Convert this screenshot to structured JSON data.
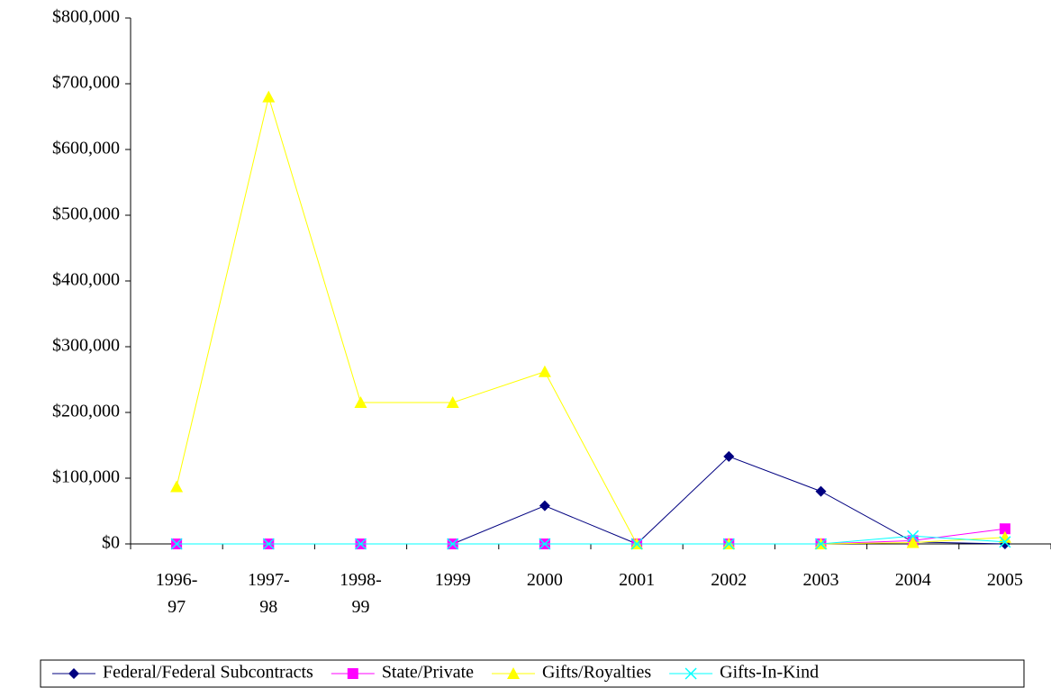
{
  "chart_data": {
    "type": "line",
    "categories": [
      "1996-97",
      "1997-98",
      "1998-99",
      "1999",
      "2000",
      "2001",
      "2002",
      "2003",
      "2004",
      "2005"
    ],
    "series": [
      {
        "name": "Federal/Federal Subcontracts",
        "color": "#000080",
        "marker": "diamond",
        "values": [
          0,
          0,
          0,
          0,
          58000,
          0,
          133000,
          80000,
          3000,
          0
        ]
      },
      {
        "name": "State/Private",
        "color": "#ff00ff",
        "marker": "square",
        "values": [
          0,
          0,
          0,
          0,
          0,
          0,
          0,
          0,
          5000,
          23000
        ]
      },
      {
        "name": "Gifts/Royalties",
        "color": "#ffff00",
        "marker": "triangle",
        "values": [
          87000,
          680000,
          215000,
          215000,
          262000,
          0,
          0,
          0,
          2000,
          10000
        ]
      },
      {
        "name": "Gifts-In-Kind",
        "color": "#00ffff",
        "marker": "x",
        "values": [
          0,
          0,
          0,
          0,
          0,
          0,
          0,
          0,
          12000,
          3000
        ]
      }
    ],
    "ylim": [
      0,
      800000
    ],
    "yticks": [
      {
        "value": 0,
        "label": "$0"
      },
      {
        "value": 100000,
        "label": "$100,000"
      },
      {
        "value": 200000,
        "label": "$200,000"
      },
      {
        "value": 300000,
        "label": "$300,000"
      },
      {
        "value": 400000,
        "label": "$400,000"
      },
      {
        "value": 500000,
        "label": "$500,000"
      },
      {
        "value": 600000,
        "label": "$600,000"
      },
      {
        "value": 700000,
        "label": "$700,000"
      },
      {
        "value": 800000,
        "label": "$800,000"
      }
    ],
    "legend": "bottom"
  }
}
